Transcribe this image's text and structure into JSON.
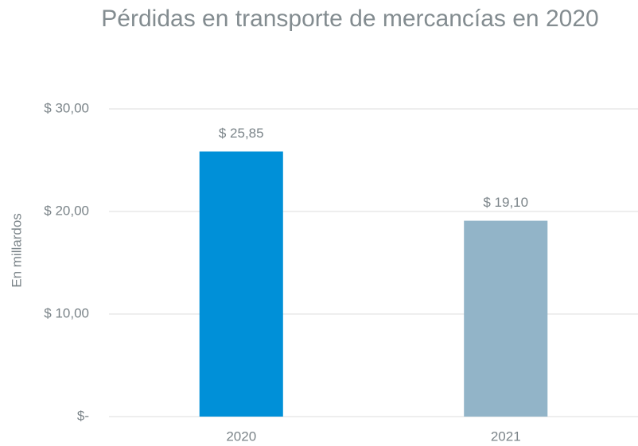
{
  "chart_data": {
    "type": "bar",
    "title": "Pérdidas en transporte de mercancías en 2020",
    "y_label": "En millardos",
    "categories": [
      "2020",
      "2021"
    ],
    "values": [
      25.85,
      19.1
    ],
    "value_labels": [
      "$ 25,85",
      "$ 19,10"
    ],
    "colors": [
      "#0090d8",
      "#92b4c8"
    ],
    "ylim": [
      0,
      30
    ],
    "yticks": [
      {
        "value": 0,
        "label": "$-"
      },
      {
        "value": 10,
        "label": "$ 10,00"
      },
      {
        "value": 20,
        "label": "$ 20,00"
      },
      {
        "value": 30,
        "label": "$ 30,00"
      }
    ],
    "grid": true
  }
}
